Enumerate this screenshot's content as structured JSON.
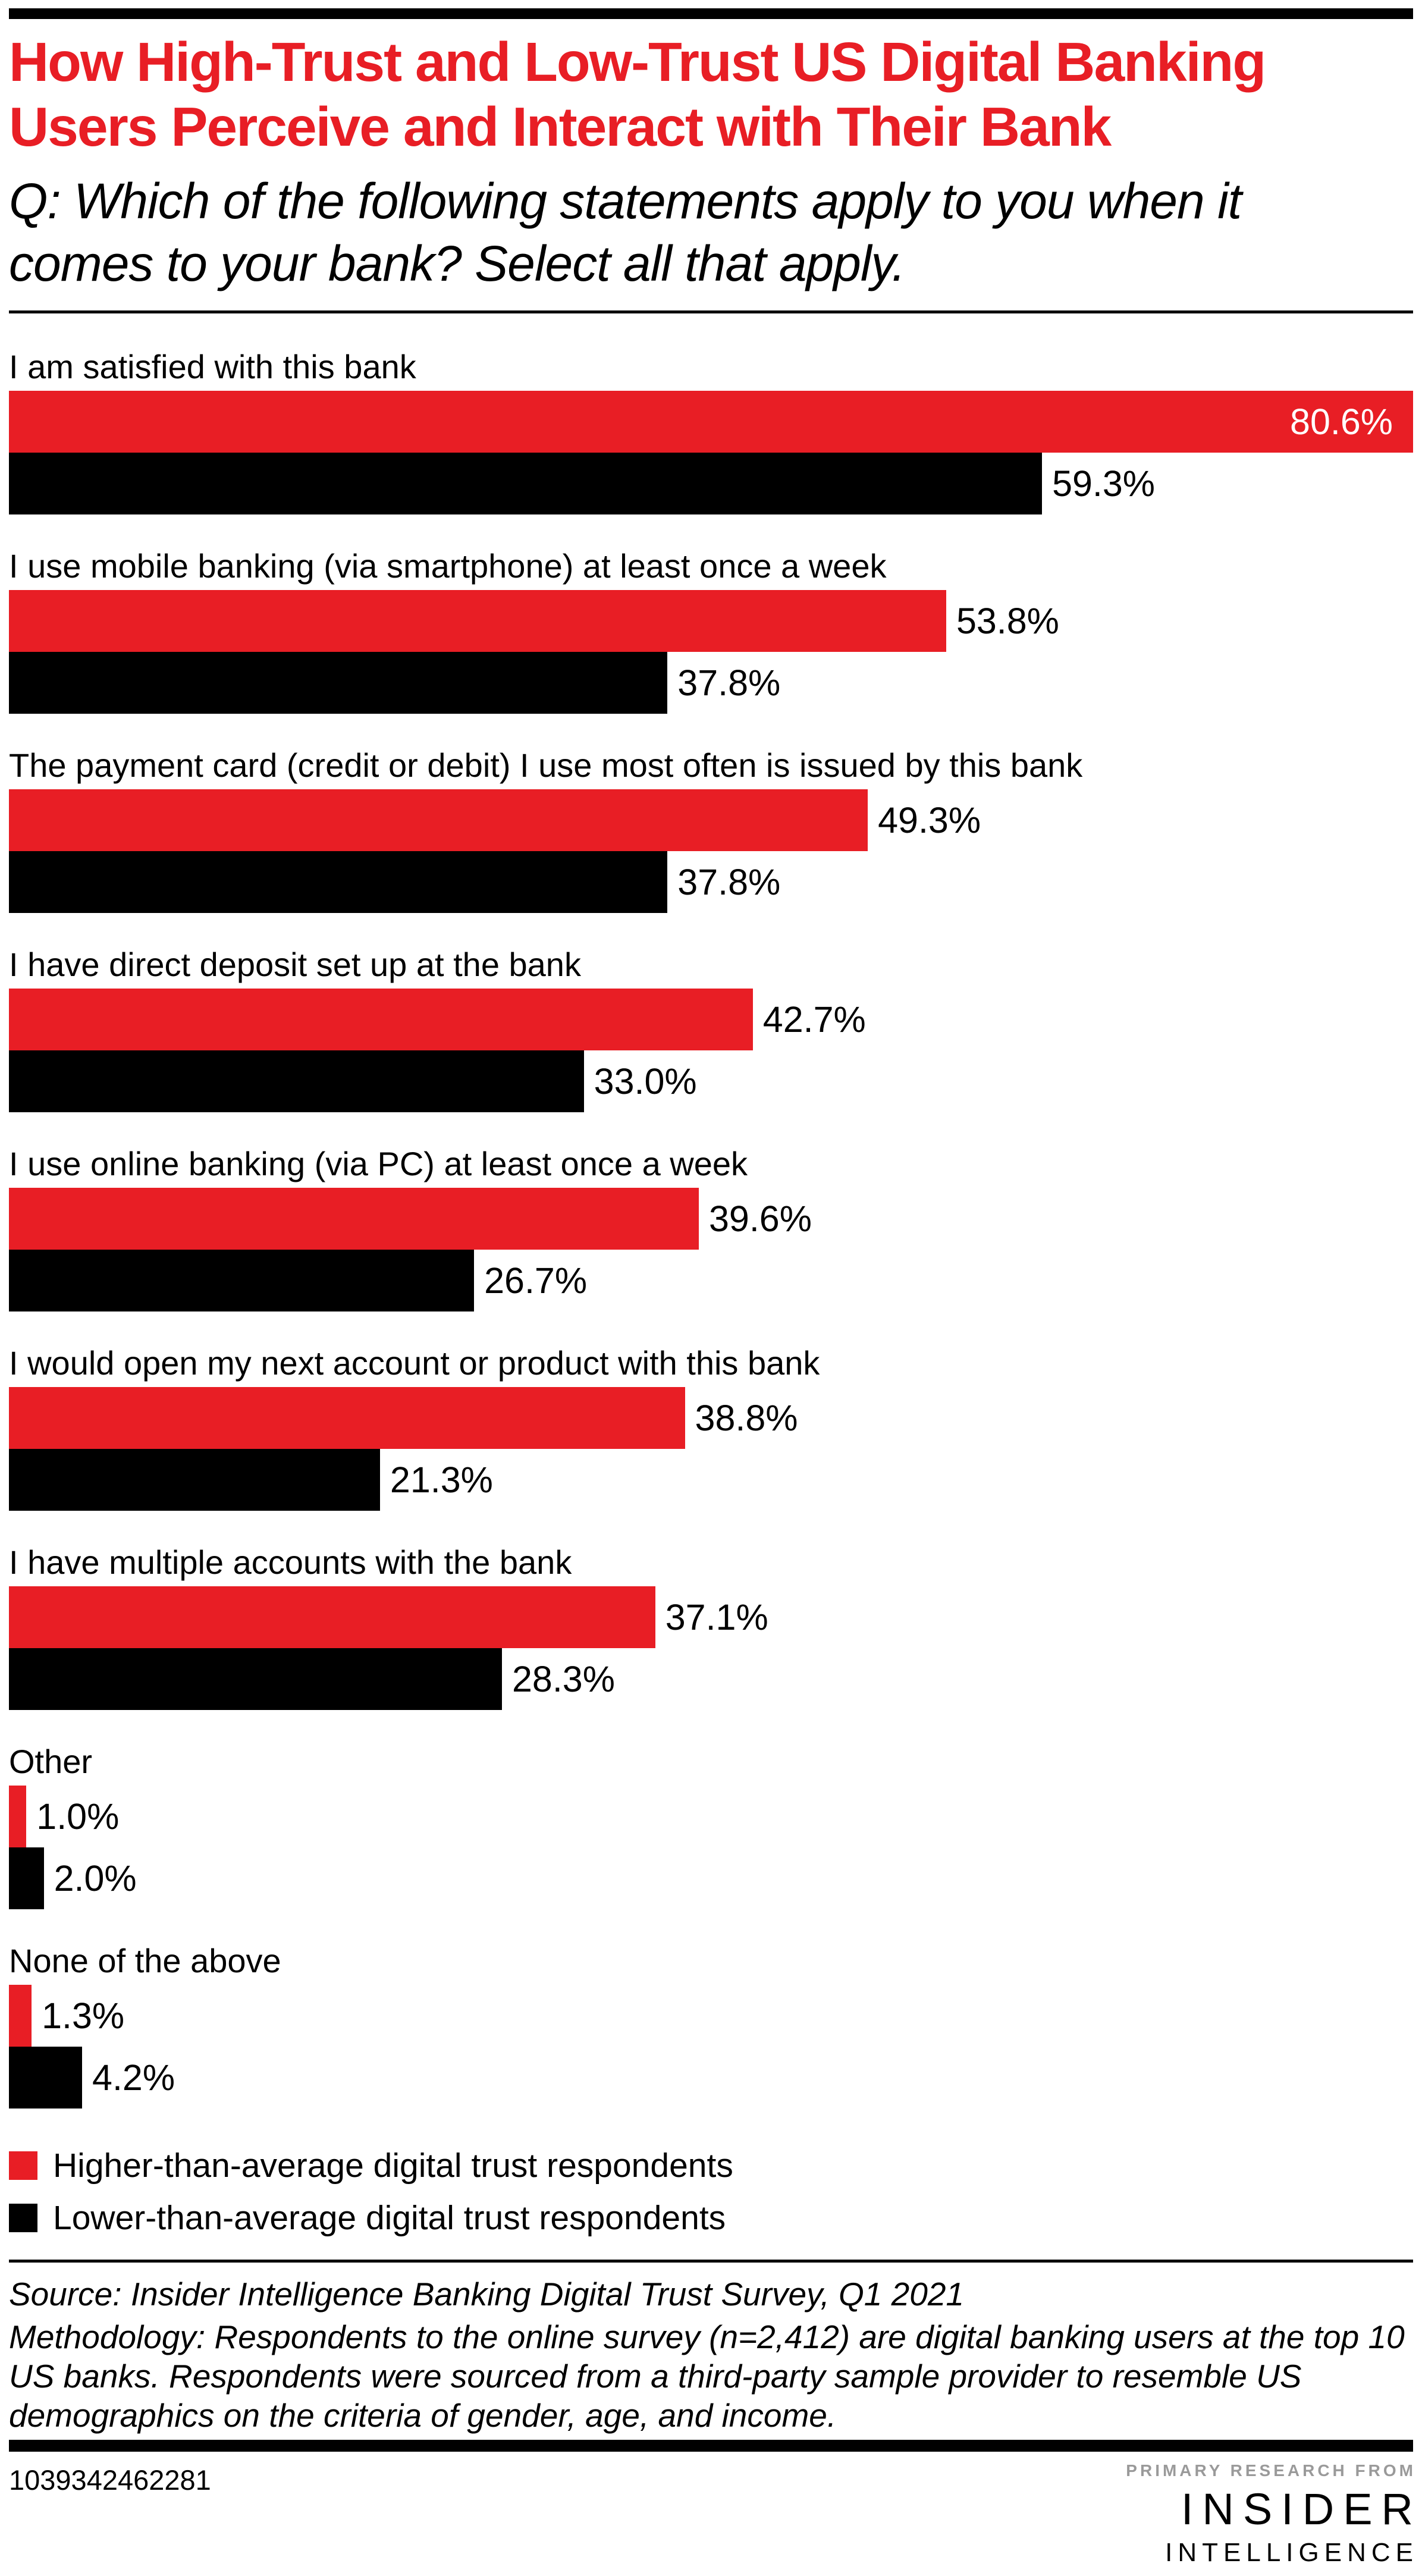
{
  "header": {
    "title": "How High-Trust and Low-Trust US Digital Banking Users Perceive and Interact with Their Bank",
    "question": "Q: Which of the following statements apply to you when it comes to your bank? Select all that apply."
  },
  "chart_data": {
    "type": "bar",
    "orientation": "horizontal",
    "title": "How High-Trust and Low-Trust US Digital Banking Users Perceive and Interact with Their Bank",
    "categories": [
      "I am satisfied with this bank",
      "I use mobile banking (via smartphone) at least once a week",
      "The payment card (credit or debit) I use most often is issued by this bank",
      "I have direct deposit set up at the bank",
      "I use online banking (via PC) at least once a week",
      "I would open my next account or product with this bank",
      "I have multiple accounts with the bank",
      "Other",
      "None of the above"
    ],
    "series": [
      {
        "name": "Higher-than-average digital trust respondents",
        "color": "#e81e25",
        "values": [
          80.6,
          53.8,
          49.3,
          42.7,
          39.6,
          38.8,
          37.1,
          1.0,
          1.3
        ]
      },
      {
        "name": "Lower-than-average digital trust respondents",
        "color": "#000000",
        "values": [
          59.3,
          37.8,
          37.8,
          33.0,
          26.7,
          21.3,
          28.3,
          2.0,
          4.2
        ]
      }
    ],
    "value_suffix": "%",
    "xlim": [
      0,
      80.6
    ],
    "grid": false,
    "axes_shown": false,
    "value_label_style": "outside right of bar; max bar labeled inside in white",
    "legend_position": "bottom-left"
  },
  "footnote": {
    "source": "Source: Insider Intelligence Banking Digital Trust Survey, Q1 2021",
    "methodology": "Methodology: Respondents to the online survey (n=2,412) are digital banking users at the top 10 US banks. Respondents were sourced from a third-party sample provider to resemble US demographics on the criteria of gender, age, and income."
  },
  "footer": {
    "id_number": "1039342462281",
    "tagline": "PRIMARY RESEARCH FROM",
    "brand_top": "INSIDER",
    "brand_bottom": "INTELLIGENCE"
  },
  "colors": {
    "accent_red": "#e81e25",
    "bar_black": "#000000",
    "tagline_gray": "#9a9a9a",
    "inside_value_label": "#ffffff",
    "background": "#ffffff"
  }
}
